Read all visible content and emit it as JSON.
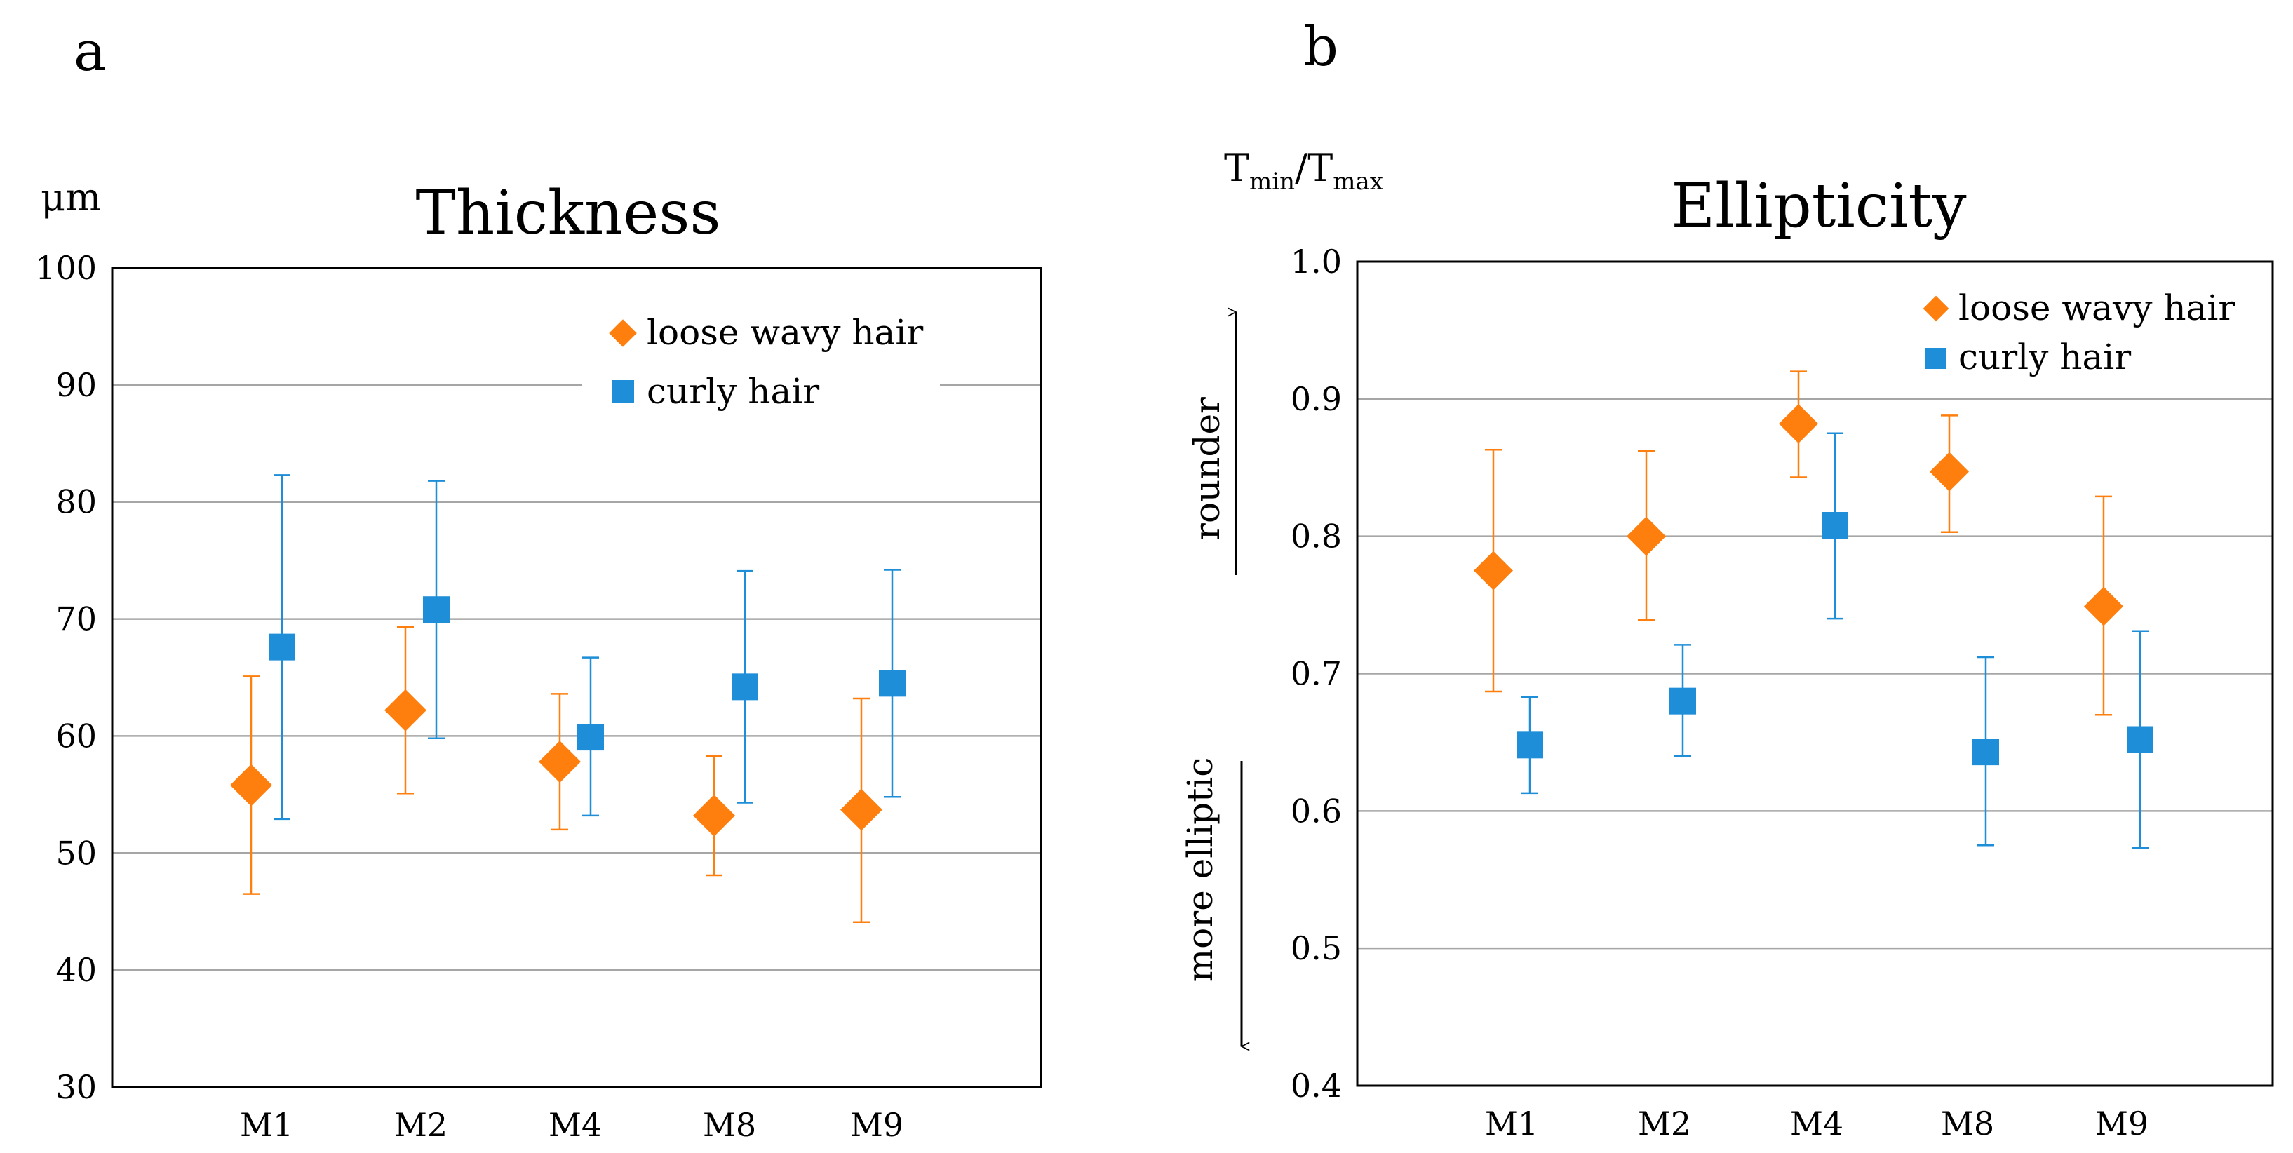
{
  "figure": {
    "panel_labels": [
      "a",
      "b"
    ]
  },
  "colors": {
    "loose_wavy": "#FF7F0E",
    "curly": "#1F8ED8",
    "grid": "#A6A6A6",
    "axis": "#000000"
  },
  "chart_data": [
    {
      "panel": "a",
      "type": "scatter",
      "title": "Thickness",
      "ylabel": "μm",
      "xlabel": "",
      "categories": [
        "M1",
        "M2",
        "M4",
        "M8",
        "M9"
      ],
      "ylim": [
        30,
        100
      ],
      "yticks": [
        30,
        40,
        50,
        60,
        70,
        80,
        90,
        100
      ],
      "grid": true,
      "legend_position": "top-right",
      "series": [
        {
          "name": "loose wavy hair",
          "marker": "diamond",
          "color": "#FF7F0E",
          "values": [
            55.8,
            62.2,
            57.8,
            53.2,
            53.7
          ],
          "error_low": [
            46.5,
            55.1,
            52.0,
            48.1,
            44.1
          ],
          "error_high": [
            65.1,
            69.3,
            63.6,
            58.3,
            63.2
          ]
        },
        {
          "name": "curly hair",
          "marker": "square",
          "color": "#1F8ED8",
          "values": [
            67.6,
            70.8,
            59.9,
            64.2,
            64.5
          ],
          "error_low": [
            52.9,
            59.8,
            53.2,
            54.3,
            54.8
          ],
          "error_high": [
            82.3,
            81.8,
            66.7,
            74.1,
            74.2
          ]
        }
      ]
    },
    {
      "panel": "b",
      "type": "scatter",
      "title": "Ellipticity",
      "ylabel": "Tmin/Tmax",
      "ylabel_parts": [
        "T",
        "min",
        "/T",
        "max"
      ],
      "xlabel": "",
      "categories": [
        "M1",
        "M2",
        "M4",
        "M8",
        "M9"
      ],
      "ylim": [
        0.4,
        1.0
      ],
      "yticks": [
        "0.4",
        "0.5",
        "0.6",
        "0.7",
        "0.8",
        "0.9",
        "1.0"
      ],
      "grid": true,
      "legend_position": "top-right",
      "annotations": {
        "up": "rounder",
        "down": "more elliptic"
      },
      "series": [
        {
          "name": "loose wavy hair",
          "marker": "diamond",
          "color": "#FF7F0E",
          "values": [
            0.775,
            0.8,
            0.882,
            0.847,
            0.749
          ],
          "error_low": [
            0.687,
            0.739,
            0.843,
            0.803,
            0.67
          ],
          "error_high": [
            0.863,
            0.862,
            0.92,
            0.888,
            0.829
          ]
        },
        {
          "name": "curly hair",
          "marker": "square",
          "color": "#1F8ED8",
          "values": [
            0.648,
            0.68,
            0.808,
            0.643,
            0.652
          ],
          "error_low": [
            0.613,
            0.64,
            0.74,
            0.575,
            0.573
          ],
          "error_high": [
            0.683,
            0.721,
            0.875,
            0.712,
            0.731
          ]
        }
      ]
    }
  ]
}
